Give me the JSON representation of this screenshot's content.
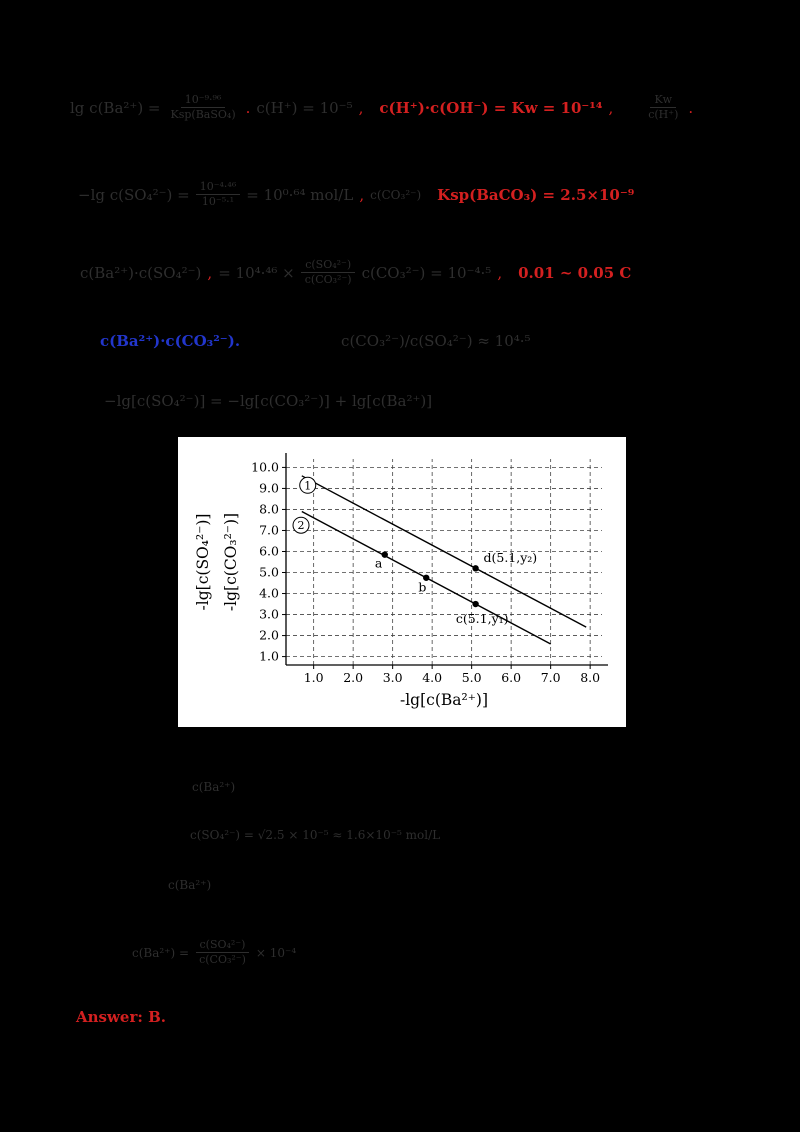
{
  "page_bg": "#000000",
  "colors": {
    "dark_text": "#2e2e2e",
    "red_accent": "#d42020",
    "blue_accent": "#2236cc",
    "chart_bg": "#ffffff",
    "chart_line": "#000000"
  },
  "rows": {
    "r1": {
      "t1": "lg c(Ba²⁺) =",
      "f1n": "10⁻⁹·⁹⁶",
      "f1d": "Ksp(BaSO₄)",
      "t2": ".",
      "t3": "c(H⁺) = 10⁻⁵",
      "t4": ",",
      "t5": "c(H⁺)·c(OH⁻) = Kw = 10⁻¹⁴",
      "t6": ",",
      "f2n": "Kw",
      "f2d": "c(H⁺)",
      "t7": "."
    },
    "r2": {
      "t1": "−lg c(SO₄²⁻) =",
      "f1n": "10⁻⁴·⁴⁶",
      "f1d": "10⁻⁵·¹",
      "t2": "= 10⁰·⁶⁴ mol/L",
      "t3": ",",
      "t4": "c(CO₃²⁻)",
      "t5": "Ksp(BaCO₃) = 2.5×10⁻⁹"
    },
    "r3": {
      "t1": "c(Ba²⁺)·c(SO₄²⁻)",
      "t2": ",",
      "t3": "= 10⁴·⁴⁶ ×",
      "f1n": "c(SO₄²⁻)",
      "f1d": "c(CO₃²⁻)",
      "t4": "c(CO₃²⁻) = 10⁻⁴·⁵",
      "t5": ",",
      "t6": "0.01 ~ 0.05 C"
    },
    "r4": {
      "t1": "c(Ba²⁺)·c(CO₃²⁻).",
      "t2": "c(CO₃²⁻)/c(SO₄²⁻) ≈ 10⁴·⁵"
    },
    "r5": {
      "t1": "−lg[c(SO₄²⁻)] = −lg[c(CO₃²⁻)] + lg[c(Ba²⁺)]"
    },
    "r6": {
      "t1": "c(Ba²⁺)"
    },
    "r7": {
      "t1": "c(SO₄²⁻) = √2.5 × 10⁻⁵ ≈ 1.6×10⁻⁵ mol/L"
    },
    "r8": {
      "t1": "c(Ba²⁺)"
    },
    "r9": {
      "t1": "c(Ba²⁺) =",
      "f1n": "c(SO₄²⁻)",
      "f1d": "c(CO₃²⁻)",
      "t2": "× 10⁻⁴"
    },
    "r10": {
      "t1": "Answer: B."
    }
  },
  "chart_data": {
    "type": "line",
    "title": "",
    "xlabel": "-lg[c(Ba²⁺)]",
    "ylabels": [
      "-lg[c(SO₄²⁻)]",
      "-lg[c(CO₃²⁻)]"
    ],
    "xlim": [
      0.3,
      8.3
    ],
    "ylim": [
      0.6,
      10.4
    ],
    "xticks": [
      1.0,
      2.0,
      3.0,
      4.0,
      5.0,
      6.0,
      7.0,
      8.0
    ],
    "yticks": [
      1.0,
      2.0,
      3.0,
      4.0,
      5.0,
      6.0,
      7.0,
      8.0,
      9.0,
      10.0
    ],
    "grid": "dashed",
    "legend_position": "none",
    "series": [
      {
        "name": "line-1",
        "label": "①",
        "digit": "1",
        "label_pos": [
          0.85,
          9.15
        ],
        "points": [
          [
            0.7,
            9.6
          ],
          [
            7.9,
            2.4
          ]
        ]
      },
      {
        "name": "line-2",
        "label": "②",
        "digit": "2",
        "label_pos": [
          0.68,
          7.25
        ],
        "points": [
          [
            0.7,
            7.9
          ],
          [
            7.0,
            1.6
          ]
        ]
      }
    ],
    "markers": [
      {
        "name": "a",
        "x": 2.8,
        "y": 5.85,
        "label": "a",
        "label_offset": [
          -0.25,
          -0.6
        ]
      },
      {
        "name": "b",
        "x": 3.85,
        "y": 4.75,
        "label": "b",
        "label_offset": [
          -0.2,
          -0.65
        ]
      },
      {
        "name": "c",
        "x": 5.1,
        "y": 3.5,
        "label": "c(5.1,y₁)",
        "label_offset": [
          -0.5,
          -0.9
        ]
      },
      {
        "name": "d",
        "x": 5.1,
        "y": 5.2,
        "label": "d(5.1,y₂)",
        "label_offset": [
          0.2,
          0.3
        ]
      }
    ]
  }
}
